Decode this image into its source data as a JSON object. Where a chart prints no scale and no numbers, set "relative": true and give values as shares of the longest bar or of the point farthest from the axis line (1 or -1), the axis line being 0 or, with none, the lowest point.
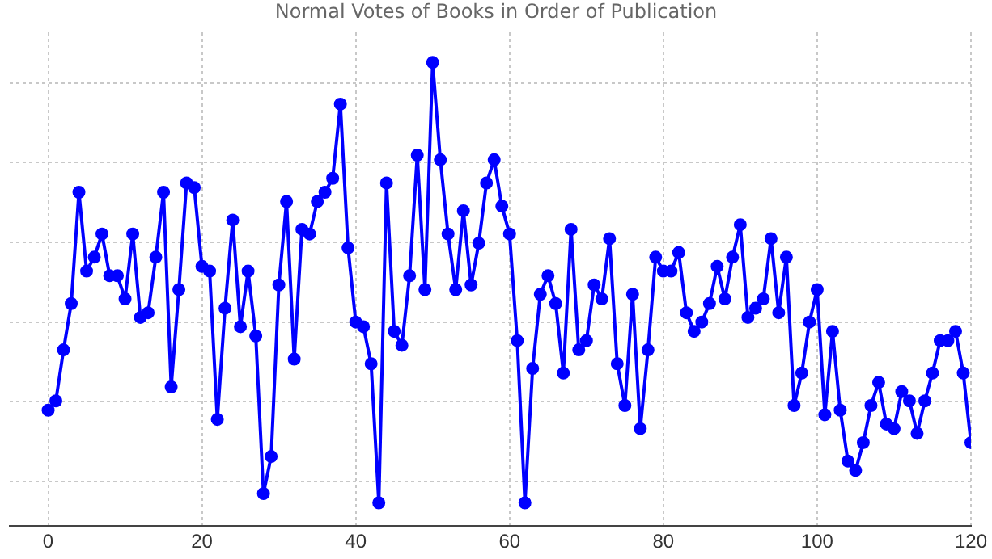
{
  "chart_data": {
    "type": "line",
    "title": "Normal Votes of Books in Order of Publication",
    "relative": true,
    "x": [
      0,
      1,
      2,
      3,
      4,
      5,
      6,
      7,
      8,
      9,
      10,
      11,
      12,
      13,
      14,
      15,
      16,
      17,
      18,
      19,
      20,
      21,
      22,
      23,
      24,
      25,
      26,
      27,
      28,
      29,
      30,
      31,
      32,
      33,
      34,
      35,
      36,
      37,
      38,
      39,
      40,
      41,
      42,
      43,
      44,
      45,
      46,
      47,
      48,
      49,
      50,
      51,
      52,
      53,
      54,
      55,
      56,
      57,
      58,
      59,
      60,
      61,
      62,
      63,
      64,
      65,
      66,
      67,
      68,
      69,
      70,
      71,
      72,
      73,
      74,
      75,
      76,
      77,
      78,
      79,
      80,
      81,
      82,
      83,
      84,
      85,
      86,
      87,
      88,
      89,
      90,
      91,
      92,
      93,
      94,
      95,
      96,
      97,
      98,
      99,
      100,
      101,
      102,
      103,
      104,
      105,
      106,
      107,
      108,
      109,
      110,
      111,
      112,
      113,
      114,
      115,
      116,
      117,
      118,
      119,
      120
    ],
    "series": [
      {
        "color": "#0000ff",
        "values": [
          0.25,
          0.27,
          0.38,
          0.48,
          0.72,
          0.55,
          0.58,
          0.63,
          0.54,
          0.54,
          0.49,
          0.63,
          0.45,
          0.46,
          0.58,
          0.72,
          0.3,
          0.51,
          0.74,
          0.73,
          0.56,
          0.55,
          0.23,
          0.47,
          0.66,
          0.43,
          0.55,
          0.41,
          0.07,
          0.15,
          0.52,
          0.7,
          0.36,
          0.64,
          0.63,
          0.7,
          0.72,
          0.75,
          0.91,
          0.6,
          0.44,
          0.43,
          0.35,
          0.05,
          0.74,
          0.42,
          0.39,
          0.54,
          0.8,
          0.51,
          1,
          0.79,
          0.63,
          0.51,
          0.68,
          0.52,
          0.61,
          0.74,
          0.79,
          0.69,
          0.63,
          0.4,
          0.05,
          0.34,
          0.5,
          0.54,
          0.48,
          0.33,
          0.64,
          0.38,
          0.4,
          0.52,
          0.49,
          0.62,
          0.35,
          0.26,
          0.5,
          0.21,
          0.38,
          0.58,
          0.55,
          0.55,
          0.59,
          0.46,
          0.42,
          0.44,
          0.48,
          0.56,
          0.49,
          0.58,
          0.65,
          0.45,
          0.47,
          0.49,
          0.62,
          0.46,
          0.58,
          0.26,
          0.33,
          0.44,
          0.51,
          0.24,
          0.42,
          0.25,
          0.14,
          0.12,
          0.18,
          0.26,
          0.31,
          0.22,
          0.21,
          0.29,
          0.27,
          0.2,
          0.27,
          0.33,
          0.4,
          0.4,
          0.42,
          0.33,
          0.18
        ]
      }
    ],
    "xlim": [
      -5,
      120
    ],
    "xticks": [
      0,
      20,
      40,
      60,
      80,
      100,
      120
    ],
    "grid": true,
    "marker": "circle",
    "line_style": "solid",
    "tick_labels": "x"
  }
}
